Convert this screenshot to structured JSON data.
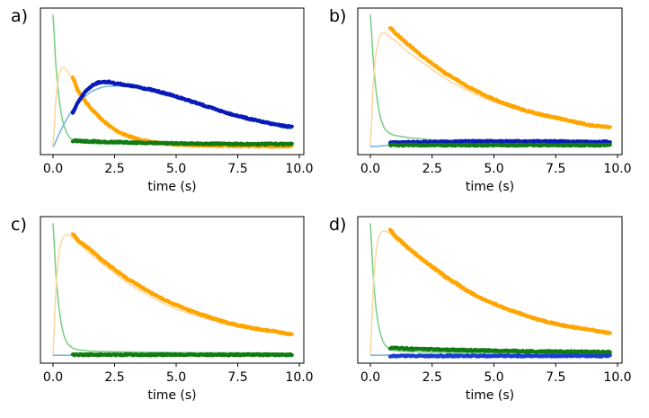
{
  "chart_data": [
    {
      "type": "line",
      "panel_label": "a)",
      "xlabel": "time (s)",
      "ylabel": "",
      "xlim": [
        -0.5,
        10.2
      ],
      "ylim": [
        -0.06,
        1.05
      ],
      "xticks": [
        0.0,
        2.5,
        5.0,
        7.5,
        10.0
      ],
      "xtick_labels": [
        "0.0",
        "2.5",
        "5.0",
        "7.5",
        "10.0"
      ],
      "yticks": [],
      "grid": false,
      "series": [
        {
          "name": "green fit",
          "kind": "fit",
          "color": "#7fd08a",
          "x": [
            0,
            0.1,
            0.2,
            0.3,
            0.4,
            0.5,
            0.6,
            0.7,
            0.8,
            1.0,
            1.5,
            2,
            3,
            4,
            5,
            6,
            7,
            8,
            9,
            9.7
          ],
          "y": [
            1.0,
            0.66,
            0.44,
            0.29,
            0.19,
            0.13,
            0.09,
            0.065,
            0.05,
            0.035,
            0.025,
            0.022,
            0.02,
            0.019,
            0.018,
            0.017,
            0.016,
            0.016,
            0.015,
            0.015
          ]
        },
        {
          "name": "orange fit",
          "kind": "fit",
          "color": "#fdd9a0",
          "x": [
            0,
            0.1,
            0.2,
            0.3,
            0.4,
            0.5,
            0.7,
            1.0,
            1.5,
            2,
            2.5,
            3,
            3.5,
            4,
            5,
            6,
            7,
            8,
            9,
            9.7
          ],
          "y": [
            0.0,
            0.32,
            0.5,
            0.58,
            0.6,
            0.59,
            0.53,
            0.44,
            0.31,
            0.21,
            0.14,
            0.095,
            0.065,
            0.045,
            0.022,
            0.012,
            0.008,
            0.006,
            0.005,
            0.005
          ]
        },
        {
          "name": "blue fit",
          "kind": "fit",
          "color": "#76b6e0",
          "x": [
            0,
            0.25,
            0.5,
            0.75,
            1.0,
            1.5,
            2.0,
            2.5,
            3.0,
            4.0,
            5.0,
            6.0,
            7.0,
            8.0,
            9.0,
            9.7
          ],
          "y": [
            0.0,
            0.1,
            0.19,
            0.27,
            0.33,
            0.41,
            0.45,
            0.46,
            0.455,
            0.42,
            0.37,
            0.31,
            0.25,
            0.2,
            0.16,
            0.135
          ]
        },
        {
          "name": "orange data",
          "kind": "data",
          "color": "#ffa500",
          "x": [
            0.8,
            1.0,
            1.25,
            1.5,
            1.75,
            2.0,
            2.5,
            3.0,
            3.5,
            4.0,
            4.5,
            5.0,
            6.0,
            7.0,
            8.0,
            9.0,
            9.7
          ],
          "y": [
            0.52,
            0.43,
            0.36,
            0.3,
            0.25,
            0.2,
            0.13,
            0.085,
            0.055,
            0.035,
            0.025,
            0.018,
            0.01,
            0.007,
            0.005,
            0.004,
            0.004
          ]
        },
        {
          "name": "blue data",
          "kind": "data",
          "color": "#0a1bb8",
          "x": [
            0.8,
            1.0,
            1.25,
            1.5,
            1.75,
            2.0,
            2.25,
            2.5,
            3.0,
            4.0,
            5.0,
            6.0,
            7.0,
            8.0,
            9.0,
            9.7
          ],
          "y": [
            0.26,
            0.33,
            0.4,
            0.45,
            0.48,
            0.49,
            0.49,
            0.48,
            0.465,
            0.43,
            0.38,
            0.32,
            0.26,
            0.21,
            0.17,
            0.15
          ]
        },
        {
          "name": "green data",
          "kind": "data",
          "color": "#127a12",
          "x": [
            0.8,
            1.5,
            2.5,
            3.5,
            5.0,
            6.5,
            8.0,
            9.7
          ],
          "y": [
            0.045,
            0.04,
            0.035,
            0.03,
            0.025,
            0.022,
            0.02,
            0.02
          ]
        }
      ]
    },
    {
      "type": "line",
      "panel_label": "b)",
      "xlabel": "time (s)",
      "ylabel": "",
      "xlim": [
        -0.5,
        10.2
      ],
      "ylim": [
        -0.06,
        1.05
      ],
      "xticks": [
        0.0,
        2.5,
        5.0,
        7.5,
        10.0
      ],
      "xtick_labels": [
        "0.0",
        "2.5",
        "5.0",
        "7.5",
        "10.0"
      ],
      "yticks": [],
      "grid": false,
      "series": [
        {
          "name": "green fit",
          "kind": "fit",
          "color": "#7fd08a",
          "x": [
            0,
            0.1,
            0.2,
            0.3,
            0.4,
            0.5,
            0.6,
            0.8,
            1.0,
            1.5,
            2,
            3,
            4,
            5,
            6,
            7,
            8,
            9,
            9.7
          ],
          "y": [
            1.0,
            0.7,
            0.48,
            0.33,
            0.23,
            0.17,
            0.13,
            0.1,
            0.085,
            0.07,
            0.06,
            0.045,
            0.035,
            0.03,
            0.025,
            0.02,
            0.02,
            0.018,
            0.018
          ]
        },
        {
          "name": "orange fit",
          "kind": "fit",
          "color": "#fdd9a0",
          "x": [
            0,
            0.1,
            0.2,
            0.3,
            0.4,
            0.5,
            0.6,
            0.8,
            1.0,
            1.5,
            2,
            3,
            4,
            5,
            6,
            7,
            8,
            9,
            9.7
          ],
          "y": [
            0.0,
            0.42,
            0.66,
            0.78,
            0.84,
            0.86,
            0.86,
            0.83,
            0.8,
            0.72,
            0.65,
            0.52,
            0.42,
            0.34,
            0.28,
            0.23,
            0.19,
            0.16,
            0.14
          ]
        },
        {
          "name": "blue fit",
          "kind": "fit",
          "color": "#76b6e0",
          "x": [
            0,
            1,
            2,
            3,
            4,
            5,
            6,
            7,
            8,
            9,
            9.7
          ],
          "y": [
            0.0,
            0.015,
            0.022,
            0.026,
            0.028,
            0.029,
            0.03,
            0.03,
            0.03,
            0.03,
            0.03
          ]
        },
        {
          "name": "orange data",
          "kind": "data",
          "color": "#ffa500",
          "x": [
            0.8,
            1.0,
            1.5,
            2.0,
            2.5,
            3.0,
            4.0,
            5.0,
            6.0,
            7.0,
            8.0,
            9.0,
            9.7
          ],
          "y": [
            0.9,
            0.86,
            0.78,
            0.7,
            0.63,
            0.56,
            0.45,
            0.36,
            0.29,
            0.24,
            0.2,
            0.16,
            0.15
          ]
        },
        {
          "name": "blue data",
          "kind": "data",
          "color": "#0a1bb8",
          "x": [
            0.8,
            2.0,
            3.0,
            4.0,
            5.0,
            6.0,
            7.0,
            8.0,
            9.0,
            9.7
          ],
          "y": [
            0.03,
            0.035,
            0.037,
            0.04,
            0.04,
            0.04,
            0.04,
            0.038,
            0.037,
            0.036
          ]
        },
        {
          "name": "green data",
          "kind": "data",
          "color": "#127a12",
          "x": [
            0.8,
            2.0,
            4.0,
            6.0,
            8.0,
            9.7
          ],
          "y": [
            0.012,
            0.012,
            0.012,
            0.012,
            0.012,
            0.012
          ]
        }
      ]
    },
    {
      "type": "line",
      "panel_label": "c)",
      "xlabel": "time (s)",
      "ylabel": "",
      "xlim": [
        -0.5,
        10.2
      ],
      "ylim": [
        -0.06,
        1.05
      ],
      "xticks": [
        0.0,
        2.5,
        5.0,
        7.5,
        10.0
      ],
      "xtick_labels": [
        "0.0",
        "2.5",
        "5.0",
        "7.5",
        "10.0"
      ],
      "yticks": [],
      "grid": false,
      "series": [
        {
          "name": "green fit",
          "kind": "fit",
          "color": "#7fd08a",
          "x": [
            0,
            0.1,
            0.2,
            0.3,
            0.4,
            0.5,
            0.6,
            0.8,
            1.0,
            1.5,
            2,
            3,
            4,
            5,
            6,
            7,
            8,
            9,
            9.7
          ],
          "y": [
            1.0,
            0.66,
            0.43,
            0.28,
            0.18,
            0.12,
            0.085,
            0.055,
            0.042,
            0.032,
            0.028,
            0.025,
            0.022,
            0.02,
            0.019,
            0.018,
            0.017,
            0.016,
            0.016
          ]
        },
        {
          "name": "orange fit",
          "kind": "fit",
          "color": "#fdd9a0",
          "x": [
            0,
            0.1,
            0.2,
            0.3,
            0.4,
            0.5,
            0.6,
            0.8,
            1.0,
            1.5,
            2,
            3,
            4,
            5,
            6,
            7,
            8,
            9,
            9.7
          ],
          "y": [
            0.0,
            0.45,
            0.7,
            0.83,
            0.89,
            0.91,
            0.91,
            0.89,
            0.85,
            0.77,
            0.69,
            0.55,
            0.44,
            0.35,
            0.29,
            0.24,
            0.2,
            0.17,
            0.15
          ]
        },
        {
          "name": "blue fit",
          "kind": "fit",
          "color": "#76b6e0",
          "x": [
            0,
            2,
            4,
            6,
            8,
            9.7
          ],
          "y": [
            0.0,
            0.002,
            0.003,
            0.003,
            0.003,
            0.003
          ]
        },
        {
          "name": "orange data",
          "kind": "data",
          "color": "#ffa500",
          "x": [
            0.8,
            1.0,
            1.5,
            2.0,
            2.5,
            3.0,
            4.0,
            5.0,
            6.0,
            7.0,
            8.0,
            9.0,
            9.7
          ],
          "y": [
            0.92,
            0.87,
            0.8,
            0.72,
            0.65,
            0.58,
            0.47,
            0.38,
            0.31,
            0.25,
            0.21,
            0.18,
            0.16
          ]
        },
        {
          "name": "green data",
          "kind": "data",
          "color": "#127a12",
          "x": [
            0.8,
            2.0,
            4.0,
            6.0,
            8.0,
            9.7
          ],
          "y": [
            0.004,
            0.004,
            0.004,
            0.004,
            0.004,
            0.004
          ]
        }
      ]
    },
    {
      "type": "line",
      "panel_label": "d)",
      "xlabel": "time (s)",
      "ylabel": "",
      "xlim": [
        -0.5,
        10.2
      ],
      "ylim": [
        -0.06,
        1.05
      ],
      "xticks": [
        0.0,
        2.5,
        5.0,
        7.5,
        10.0
      ],
      "xtick_labels": [
        "0.0",
        "2.5",
        "5.0",
        "7.5",
        "10.0"
      ],
      "yticks": [],
      "grid": false,
      "series": [
        {
          "name": "green fit",
          "kind": "fit",
          "color": "#7fd08a",
          "x": [
            0,
            0.1,
            0.2,
            0.3,
            0.4,
            0.5,
            0.6,
            0.8,
            1.0,
            1.5,
            2,
            3,
            4,
            5,
            6,
            7,
            8,
            9,
            9.7
          ],
          "y": [
            1.0,
            0.64,
            0.41,
            0.26,
            0.17,
            0.11,
            0.075,
            0.045,
            0.035,
            0.028,
            0.025,
            0.022,
            0.02,
            0.018,
            0.017,
            0.016,
            0.016,
            0.015,
            0.015
          ]
        },
        {
          "name": "orange fit",
          "kind": "fit",
          "color": "#fdd9a0",
          "x": [
            0,
            0.1,
            0.2,
            0.3,
            0.4,
            0.5,
            0.6,
            0.8,
            1.0,
            1.5,
            2,
            3,
            4,
            5,
            6,
            7,
            8,
            9,
            9.7
          ],
          "y": [
            0.0,
            0.46,
            0.72,
            0.86,
            0.92,
            0.94,
            0.94,
            0.92,
            0.88,
            0.8,
            0.72,
            0.58,
            0.47,
            0.38,
            0.31,
            0.25,
            0.21,
            0.18,
            0.16
          ]
        },
        {
          "name": "blue fit",
          "kind": "fit",
          "color": "#76b6e0",
          "x": [
            0,
            2,
            4,
            6,
            8,
            9.7
          ],
          "y": [
            0.0,
            0.003,
            0.004,
            0.004,
            0.004,
            0.004
          ]
        },
        {
          "name": "orange data",
          "kind": "data",
          "color": "#ffa500",
          "x": [
            0.8,
            1.0,
            1.5,
            2.0,
            2.5,
            3.0,
            4.0,
            5.0,
            6.0,
            7.0,
            8.0,
            9.0,
            9.7
          ],
          "y": [
            0.95,
            0.9,
            0.82,
            0.74,
            0.67,
            0.6,
            0.48,
            0.39,
            0.32,
            0.26,
            0.22,
            0.19,
            0.17
          ]
        },
        {
          "name": "blue data",
          "kind": "data",
          "color": "#1a3fd0",
          "x": [
            0.8,
            2.0,
            4.0,
            6.0,
            8.0,
            9.7
          ],
          "y": [
            -0.005,
            -0.005,
            -0.005,
            -0.005,
            -0.005,
            -0.005
          ]
        },
        {
          "name": "green data",
          "kind": "data",
          "color": "#127a12",
          "x": [
            0.8,
            1.5,
            2.5,
            3.5,
            5.0,
            6.5,
            8.0,
            9.7
          ],
          "y": [
            0.055,
            0.05,
            0.045,
            0.04,
            0.035,
            0.03,
            0.028,
            0.025
          ]
        }
      ]
    }
  ]
}
